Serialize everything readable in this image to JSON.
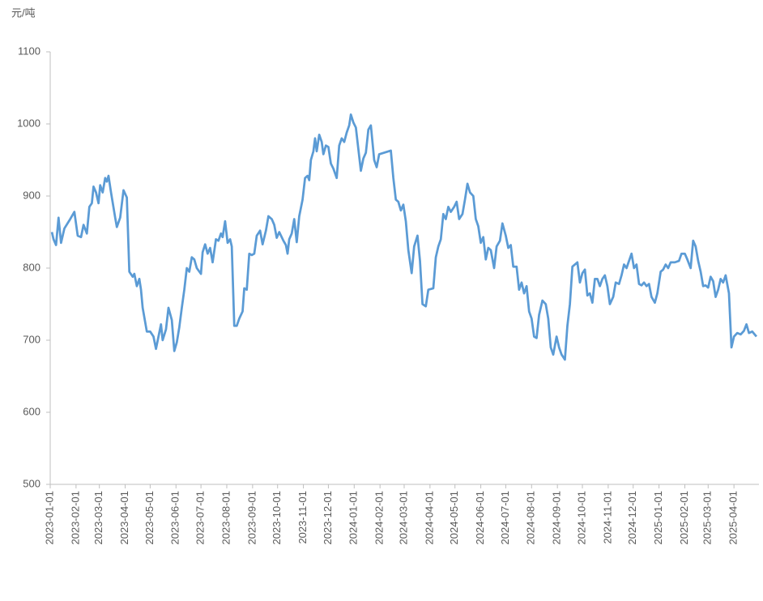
{
  "chart_data": {
    "type": "line",
    "ylabel": "元/吨",
    "color": "#5b9bd5",
    "xlim": [
      "2023-01-01",
      "2025-05-01"
    ],
    "xticks": [
      "2023-01-01",
      "2023-02-01",
      "2023-03-01",
      "2023-04-01",
      "2023-05-01",
      "2023-06-01",
      "2023-07-01",
      "2023-08-01",
      "2023-09-01",
      "2023-10-01",
      "2023-11-01",
      "2023-12-01",
      "2024-01-01",
      "2024-02-01",
      "2024-03-01",
      "2024-04-01",
      "2024-05-01",
      "2024-06-01",
      "2024-07-01",
      "2024-08-01",
      "2024-09-01",
      "2024-10-01",
      "2024-11-01",
      "2024-12-01",
      "2025-01-01",
      "2025-02-01",
      "2025-03-01",
      "2025-04-01"
    ],
    "ylim": [
      500,
      1100
    ],
    "yticks": [
      500,
      600,
      700,
      800,
      900,
      1000,
      1100
    ],
    "x": [
      "2023-01-03",
      "2023-01-05",
      "2023-01-08",
      "2023-01-11",
      "2023-01-14",
      "2023-01-18",
      "2023-01-25",
      "2023-01-30",
      "2023-02-03",
      "2023-02-07",
      "2023-02-10",
      "2023-02-14",
      "2023-02-17",
      "2023-02-20",
      "2023-02-22",
      "2023-02-25",
      "2023-02-28",
      "2023-03-02",
      "2023-03-05",
      "2023-03-08",
      "2023-03-10",
      "2023-03-12",
      "2023-03-15",
      "2023-03-20",
      "2023-03-22",
      "2023-03-26",
      "2023-03-30",
      "2023-04-03",
      "2023-04-06",
      "2023-04-10",
      "2023-04-12",
      "2023-04-15",
      "2023-04-18",
      "2023-04-20",
      "2023-04-22",
      "2023-04-27",
      "2023-05-01",
      "2023-05-05",
      "2023-05-08",
      "2023-05-11",
      "2023-05-14",
      "2023-05-16",
      "2023-05-20",
      "2023-05-23",
      "2023-05-27",
      "2023-05-30",
      "2023-06-02",
      "2023-06-05",
      "2023-06-08",
      "2023-06-11",
      "2023-06-14",
      "2023-06-17",
      "2023-06-20",
      "2023-06-23",
      "2023-06-26",
      "2023-07-01",
      "2023-07-03",
      "2023-07-06",
      "2023-07-09",
      "2023-07-12",
      "2023-07-15",
      "2023-07-19",
      "2023-07-22",
      "2023-07-25",
      "2023-07-27",
      "2023-07-30",
      "2023-08-02",
      "2023-08-05",
      "2023-08-07",
      "2023-08-10",
      "2023-08-13",
      "2023-08-16",
      "2023-08-20",
      "2023-08-22",
      "2023-08-25",
      "2023-08-28",
      "2023-08-31",
      "2023-09-03",
      "2023-09-06",
      "2023-09-10",
      "2023-09-13",
      "2023-09-17",
      "2023-09-20",
      "2023-09-24",
      "2023-09-27",
      "2023-09-30",
      "2023-10-03",
      "2023-10-08",
      "2023-10-11",
      "2023-10-13",
      "2023-10-15",
      "2023-10-18",
      "2023-10-21",
      "2023-10-24",
      "2023-10-27",
      "2023-10-31",
      "2023-11-03",
      "2023-11-06",
      "2023-11-08",
      "2023-11-10",
      "2023-11-13",
      "2023-11-15",
      "2023-11-17",
      "2023-11-20",
      "2023-11-23",
      "2023-11-25",
      "2023-11-28",
      "2023-12-01",
      "2023-12-04",
      "2023-12-07",
      "2023-12-11",
      "2023-12-14",
      "2023-12-17",
      "2023-12-20",
      "2023-12-23",
      "2023-12-26",
      "2023-12-28",
      "2023-12-31",
      "2024-01-03",
      "2024-01-06",
      "2024-01-09",
      "2024-01-12",
      "2024-01-15",
      "2024-01-18",
      "2024-01-21",
      "2024-01-25",
      "2024-01-28",
      "2024-01-31",
      "2024-02-14",
      "2024-02-17",
      "2024-02-20",
      "2024-02-23",
      "2024-02-26",
      "2024-02-29",
      "2024-03-03",
      "2024-03-06",
      "2024-03-10",
      "2024-03-13",
      "2024-03-17",
      "2024-03-20",
      "2024-03-23",
      "2024-03-27",
      "2024-03-30",
      "2024-04-05",
      "2024-04-08",
      "2024-04-11",
      "2024-04-14",
      "2024-04-17",
      "2024-04-20",
      "2024-04-23",
      "2024-04-26",
      "2024-04-30",
      "2024-05-03",
      "2024-05-06",
      "2024-05-10",
      "2024-05-13",
      "2024-05-16",
      "2024-05-19",
      "2024-05-23",
      "2024-05-26",
      "2024-05-29",
      "2024-06-01",
      "2024-06-04",
      "2024-06-07",
      "2024-06-10",
      "2024-06-13",
      "2024-06-17",
      "2024-06-20",
      "2024-06-24",
      "2024-06-27",
      "2024-07-01",
      "2024-07-04",
      "2024-07-07",
      "2024-07-10",
      "2024-07-14",
      "2024-07-17",
      "2024-07-20",
      "2024-07-23",
      "2024-07-26",
      "2024-07-29",
      "2024-08-01",
      "2024-08-04",
      "2024-08-07",
      "2024-08-10",
      "2024-08-14",
      "2024-08-18",
      "2024-08-21",
      "2024-08-24",
      "2024-08-27",
      "2024-08-31",
      "2024-09-03",
      "2024-09-06",
      "2024-09-10",
      "2024-09-13",
      "2024-09-16",
      "2024-09-19",
      "2024-09-22",
      "2024-09-25",
      "2024-09-28",
      "2024-10-01",
      "2024-10-04",
      "2024-10-07",
      "2024-10-10",
      "2024-10-13",
      "2024-10-16",
      "2024-10-19",
      "2024-10-22",
      "2024-10-25",
      "2024-10-28",
      "2024-10-31",
      "2024-11-03",
      "2024-11-07",
      "2024-11-10",
      "2024-11-14",
      "2024-11-17",
      "2024-11-20",
      "2024-11-23",
      "2024-11-26",
      "2024-11-29",
      "2024-12-02",
      "2024-12-05",
      "2024-12-08",
      "2024-12-11",
      "2024-12-14",
      "2024-12-17",
      "2024-12-20",
      "2024-12-23",
      "2024-12-27",
      "2024-12-30",
      "2025-01-03",
      "2025-01-06",
      "2025-01-09",
      "2025-01-12",
      "2025-01-15",
      "2025-01-20",
      "2025-01-25",
      "2025-01-28",
      "2025-02-01",
      "2025-02-04",
      "2025-02-08",
      "2025-02-11",
      "2025-02-14",
      "2025-02-17",
      "2025-02-20",
      "2025-02-23",
      "2025-02-26",
      "2025-03-01",
      "2025-03-04",
      "2025-03-07",
      "2025-03-10",
      "2025-03-13",
      "2025-03-16",
      "2025-03-19",
      "2025-03-22",
      "2025-03-26",
      "2025-03-29",
      "2025-04-01",
      "2025-04-05",
      "2025-04-09",
      "2025-04-13",
      "2025-04-16",
      "2025-04-19",
      "2025-04-23",
      "2025-04-28"
    ],
    "values": [
      850,
      840,
      832,
      870,
      835,
      855,
      868,
      878,
      845,
      843,
      860,
      848,
      885,
      890,
      913,
      905,
      890,
      915,
      905,
      925,
      920,
      928,
      905,
      870,
      857,
      870,
      908,
      898,
      795,
      788,
      792,
      775,
      785,
      770,
      745,
      712,
      712,
      705,
      688,
      705,
      722,
      700,
      715,
      745,
      728,
      685,
      697,
      718,
      745,
      770,
      800,
      795,
      815,
      812,
      800,
      792,
      822,
      833,
      820,
      828,
      808,
      840,
      838,
      848,
      843,
      865,
      835,
      840,
      830,
      720,
      720,
      730,
      740,
      772,
      770,
      820,
      818,
      820,
      845,
      852,
      833,
      852,
      872,
      868,
      860,
      842,
      850,
      838,
      832,
      820,
      840,
      848,
      868,
      836,
      872,
      895,
      925,
      928,
      922,
      950,
      962,
      980,
      962,
      985,
      975,
      958,
      970,
      968,
      945,
      938,
      925,
      970,
      980,
      975,
      988,
      998,
      1013,
      1002,
      995,
      965,
      935,
      952,
      960,
      992,
      998,
      950,
      940,
      958,
      963,
      925,
      895,
      892,
      880,
      888,
      865,
      825,
      793,
      830,
      845,
      810,
      750,
      747,
      770,
      772,
      815,
      830,
      840,
      875,
      868,
      885,
      878,
      885,
      892,
      868,
      875,
      895,
      917,
      905,
      900,
      868,
      858,
      835,
      843,
      812,
      828,
      825,
      800,
      830,
      838,
      862,
      845,
      828,
      832,
      802,
      802,
      770,
      780,
      765,
      775,
      740,
      730,
      705,
      703,
      735,
      755,
      750,
      730,
      690,
      680,
      705,
      690,
      680,
      673,
      720,
      750,
      802,
      805,
      808,
      780,
      793,
      798,
      762,
      765,
      752,
      785,
      785,
      775,
      785,
      790,
      775,
      750,
      760,
      780,
      778,
      790,
      805,
      800,
      810,
      820,
      800,
      805,
      778,
      776,
      780,
      775,
      778,
      760,
      752,
      765,
      795,
      798,
      805,
      800,
      808,
      808,
      810,
      820,
      820,
      812,
      800,
      838,
      830,
      810,
      795,
      775,
      776,
      773,
      788,
      782,
      760,
      770,
      785,
      780,
      790,
      765,
      690,
      705,
      710,
      708,
      713,
      722,
      710,
      712,
      705
    ]
  }
}
